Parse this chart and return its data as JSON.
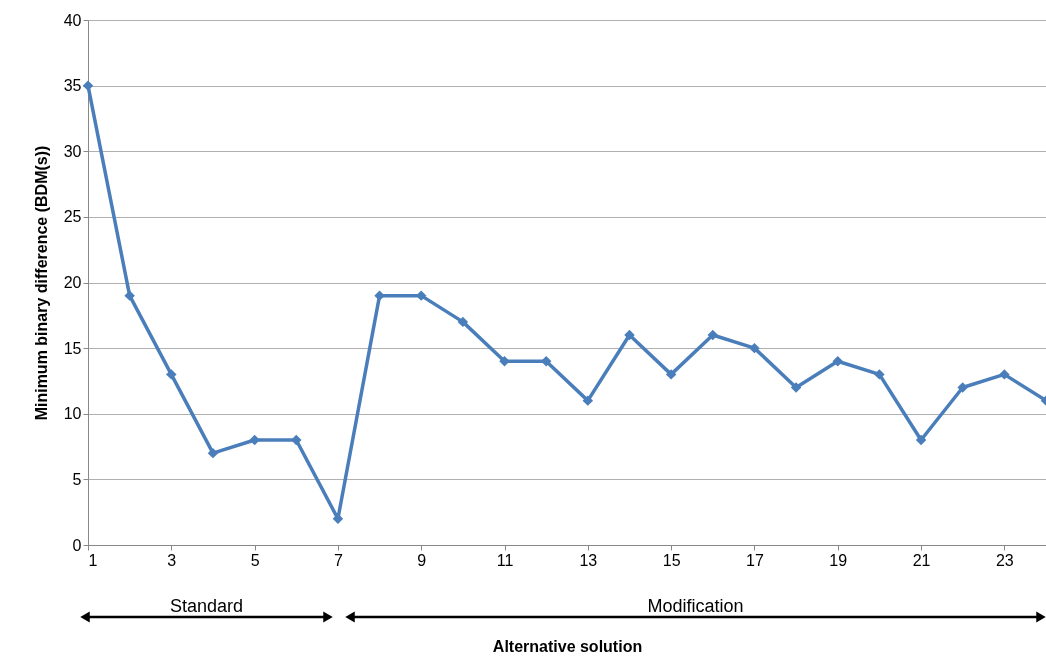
{
  "chart_data": {
    "type": "line",
    "xlabel": "Alternative solution",
    "ylabel": "Minimum binary difference (BDM(s))",
    "x": [
      1,
      2,
      3,
      4,
      5,
      6,
      7,
      8,
      9,
      10,
      11,
      12,
      13,
      14,
      15,
      16,
      17,
      18,
      19,
      20,
      21,
      22,
      23,
      24
    ],
    "series": [
      {
        "color": "#4a7ebb",
        "values": [
          35,
          19,
          13,
          7,
          8,
          8,
          2,
          19,
          19,
          17,
          14,
          14,
          11,
          16,
          13,
          16,
          15,
          12,
          14,
          13,
          8,
          12,
          13,
          11
        ]
      }
    ],
    "xlim": [
      1,
      24
    ],
    "xticks": [
      1,
      3,
      5,
      7,
      9,
      11,
      13,
      15,
      17,
      19,
      21,
      23
    ],
    "ylim": [
      0,
      40
    ],
    "yticks": [
      0,
      5,
      10,
      15,
      20,
      25,
      30,
      35,
      40
    ],
    "grid": "y",
    "marker": "diamond",
    "line_style": "solid",
    "annotations": [
      "Standard",
      "Modification"
    ]
  }
}
